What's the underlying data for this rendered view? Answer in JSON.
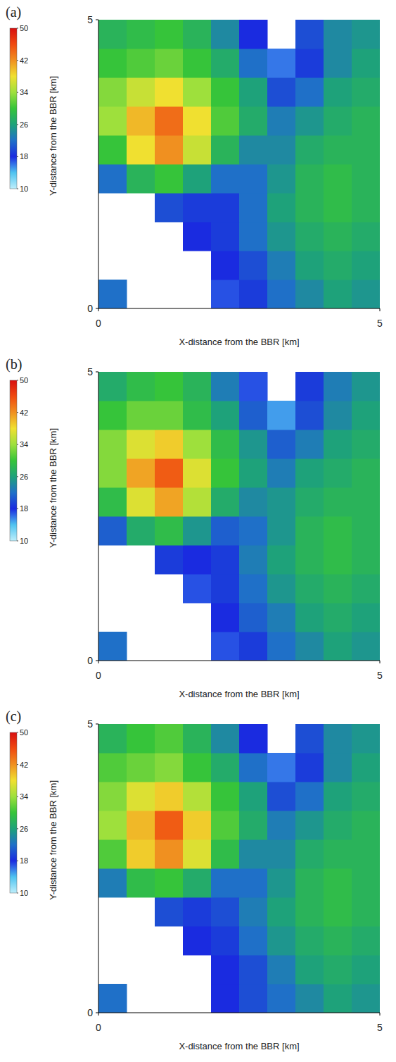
{
  "chart_data": [
    {
      "type": "heatmap",
      "panel": "(a)",
      "xlabel": "X-distance from the BBR [km]",
      "ylabel": "Y-distance from the BBR [km]",
      "xlim": [
        0,
        5
      ],
      "ylim": [
        0,
        5
      ],
      "xticks": [
        0,
        5
      ],
      "yticks": [
        0,
        5
      ],
      "x_edges": [
        0,
        0.5,
        1,
        1.5,
        2,
        2.5,
        3,
        3.5,
        4,
        4.5,
        5
      ],
      "y_edges": [
        0,
        0.5,
        1,
        1.5,
        2,
        2.5,
        3,
        3.5,
        4,
        4.5,
        5
      ],
      "cells": [
        [
          22,
          null,
          null,
          null,
          17,
          19,
          22,
          24,
          26,
          25
        ],
        [
          null,
          null,
          null,
          null,
          18,
          20,
          23,
          26,
          27,
          26
        ],
        [
          null,
          null,
          null,
          18,
          19,
          22,
          25,
          27,
          28,
          27
        ],
        [
          null,
          null,
          20,
          19,
          19,
          22,
          26,
          28,
          29,
          28
        ],
        [
          22,
          28,
          30,
          26,
          22,
          22,
          25,
          28,
          29,
          28
        ],
        [
          30,
          38,
          42,
          36,
          28,
          24,
          24,
          27,
          28,
          28
        ],
        [
          34,
          40,
          44,
          38,
          31,
          27,
          23,
          25,
          27,
          28
        ],
        [
          33,
          36,
          38,
          34,
          30,
          26,
          20,
          22,
          26,
          27
        ],
        [
          30,
          31,
          32,
          30,
          27,
          22,
          16,
          19,
          24,
          26
        ],
        [
          28,
          29,
          30,
          28,
          24,
          18,
          null,
          20,
          24,
          25
        ]
      ],
      "colorbar": {
        "range": [
          10,
          50
        ],
        "ticks": [
          10,
          18,
          26,
          34,
          42,
          50
        ]
      }
    },
    {
      "type": "heatmap",
      "panel": "(b)",
      "xlabel": "X-distance from the BBR [km]",
      "ylabel": "Y-distance from the BBR [km]",
      "xlim": [
        0,
        5
      ],
      "ylim": [
        0,
        5
      ],
      "xticks": [
        0,
        5
      ],
      "yticks": [
        0,
        5
      ],
      "x_edges": [
        0,
        0.5,
        1,
        1.5,
        2,
        2.5,
        3,
        3.5,
        4,
        4.5,
        5
      ],
      "y_edges": [
        0,
        0.5,
        1,
        1.5,
        2,
        2.5,
        3,
        3.5,
        4,
        4.5,
        5
      ],
      "cells": [
        [
          22,
          null,
          null,
          null,
          17,
          19,
          22,
          24,
          26,
          25
        ],
        [
          null,
          null,
          null,
          null,
          18,
          21,
          23,
          26,
          27,
          26
        ],
        [
          null,
          null,
          null,
          17,
          19,
          22,
          25,
          27,
          28,
          27
        ],
        [
          null,
          null,
          19,
          18,
          19,
          23,
          26,
          28,
          29,
          28
        ],
        [
          21,
          27,
          29,
          25,
          21,
          22,
          25,
          28,
          29,
          28
        ],
        [
          29,
          37,
          41,
          35,
          27,
          24,
          25,
          27,
          28,
          28
        ],
        [
          33,
          41,
          45,
          37,
          30,
          26,
          23,
          26,
          27,
          28
        ],
        [
          33,
          37,
          39,
          34,
          29,
          25,
          21,
          23,
          26,
          27
        ],
        [
          30,
          32,
          32,
          29,
          26,
          21,
          15,
          20,
          24,
          26
        ],
        [
          27,
          29,
          30,
          28,
          23,
          17,
          null,
          19,
          23,
          25
        ]
      ],
      "colorbar": {
        "range": [
          10,
          50
        ],
        "ticks": [
          10,
          18,
          26,
          34,
          42,
          50
        ]
      }
    },
    {
      "type": "heatmap",
      "panel": "(c)",
      "xlabel": "X-distance from the BBR [km]",
      "ylabel": "Y-distance from the BBR [km]",
      "xlim": [
        0,
        5
      ],
      "ylim": [
        0,
        5
      ],
      "xticks": [
        0,
        5
      ],
      "yticks": [
        0,
        5
      ],
      "x_edges": [
        0,
        0.5,
        1,
        1.5,
        2,
        2.5,
        3,
        3.5,
        4,
        4.5,
        5
      ],
      "y_edges": [
        0,
        0.5,
        1,
        1.5,
        2,
        2.5,
        3,
        3.5,
        4,
        4.5,
        5
      ],
      "cells": [
        [
          22,
          null,
          null,
          null,
          18,
          20,
          22,
          24,
          26,
          25
        ],
        [
          null,
          null,
          null,
          null,
          18,
          20,
          23,
          26,
          27,
          26
        ],
        [
          null,
          null,
          null,
          18,
          19,
          22,
          25,
          27,
          28,
          27
        ],
        [
          null,
          null,
          20,
          19,
          20,
          23,
          26,
          28,
          29,
          28
        ],
        [
          23,
          29,
          30,
          27,
          22,
          22,
          25,
          28,
          29,
          28
        ],
        [
          31,
          39,
          42,
          37,
          29,
          24,
          24,
          27,
          28,
          28
        ],
        [
          34,
          40,
          45,
          39,
          31,
          27,
          23,
          25,
          27,
          28
        ],
        [
          33,
          37,
          39,
          35,
          30,
          26,
          20,
          22,
          26,
          27
        ],
        [
          31,
          32,
          33,
          30,
          27,
          22,
          16,
          19,
          24,
          26
        ],
        [
          28,
          30,
          31,
          28,
          24,
          18,
          null,
          20,
          24,
          25
        ]
      ],
      "colorbar": {
        "range": [
          10,
          50
        ],
        "ticks": [
          10,
          18,
          26,
          34,
          42,
          50
        ]
      }
    }
  ]
}
